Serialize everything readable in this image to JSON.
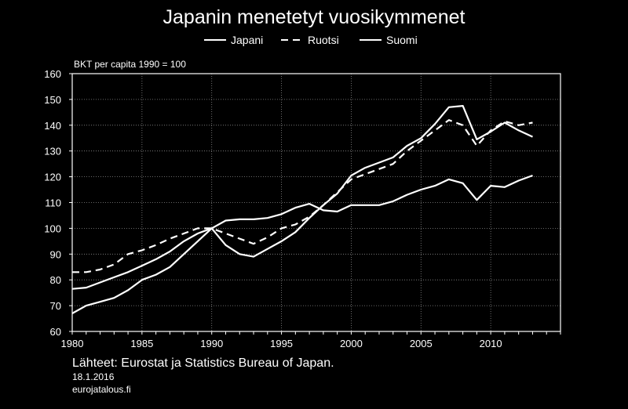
{
  "chart_data": {
    "type": "line",
    "title": "Japanin menetetyt vuosikymmenet",
    "ylabel": "BKT per capita 1990 = 100",
    "xlabel": "",
    "xlim": [
      1980,
      2015
    ],
    "ylim": [
      60,
      160
    ],
    "xticks": [
      1980,
      1985,
      1990,
      1995,
      2000,
      2005,
      2010
    ],
    "yticks": [
      60,
      70,
      80,
      90,
      100,
      110,
      120,
      130,
      140,
      150,
      160
    ],
    "legend_position": "top-center",
    "grid": true,
    "x": [
      1980,
      1981,
      1982,
      1983,
      1984,
      1985,
      1986,
      1987,
      1988,
      1989,
      1990,
      1991,
      1992,
      1993,
      1994,
      1995,
      1996,
      1997,
      1998,
      1999,
      2000,
      2001,
      2002,
      2003,
      2004,
      2005,
      2006,
      2007,
      2008,
      2009,
      2010,
      2011,
      2012,
      2013
    ],
    "series": [
      {
        "name": "Japani",
        "style": "solid",
        "values": [
          76.5,
          77,
          79,
          81,
          83,
          85.5,
          88,
          91,
          95,
          98,
          100,
          103,
          103.5,
          103.5,
          104,
          105.5,
          108,
          109.5,
          107,
          106.5,
          109,
          109,
          109,
          110.5,
          113,
          115,
          116.5,
          119,
          117.5,
          111,
          116.5,
          116,
          118.5,
          120.5
        ]
      },
      {
        "name": "Ruotsi",
        "style": "dashed",
        "values": [
          83,
          83,
          84,
          86,
          90,
          91.5,
          93.5,
          96,
          98,
          100,
          100,
          98,
          96,
          94,
          96.5,
          100,
          101.5,
          104.5,
          109,
          114,
          119,
          121,
          123,
          125,
          130,
          134,
          138,
          142,
          140,
          132,
          138,
          141.5,
          140,
          141
        ]
      },
      {
        "name": "Suomi",
        "style": "solid",
        "values": [
          67,
          70,
          71.5,
          73,
          76,
          80,
          82,
          85,
          90,
          95,
          100,
          93.5,
          90,
          89,
          92,
          95,
          98.5,
          104,
          109,
          113.5,
          120.5,
          123.5,
          125.5,
          127.5,
          132,
          135,
          140.5,
          147,
          147.5,
          134.5,
          137.5,
          141,
          138,
          135.5
        ]
      }
    ]
  },
  "footer": {
    "source": "Lähteet: Eurostat ja Statistics Bureau of Japan.",
    "date": "18.1.2016",
    "site": "eurojatalous.fi"
  },
  "colors": {
    "background": "#000000",
    "foreground": "#ffffff"
  }
}
